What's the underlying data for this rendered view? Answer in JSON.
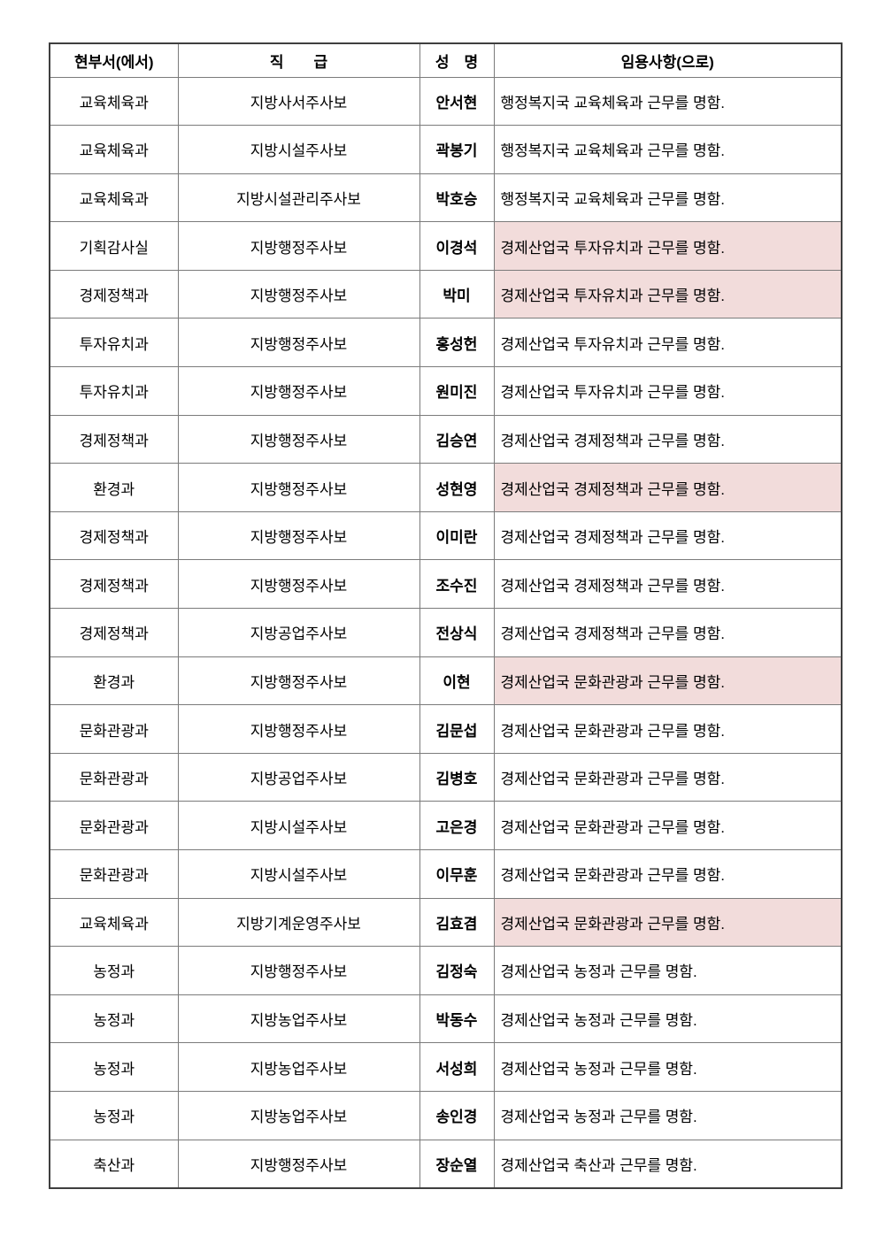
{
  "table": {
    "highlight_color": "#f2dcdb",
    "columns": [
      {
        "label": "현부서(에서)"
      },
      {
        "label": "직　　급"
      },
      {
        "label": "성　명"
      },
      {
        "label": "임용사항(으로)"
      }
    ],
    "rows": [
      {
        "dept": "교육체육과",
        "rank": "지방사서주사보",
        "name": "안서현",
        "assignment": "행정복지국 교육체육과 근무를 명함.",
        "highlighted": false
      },
      {
        "dept": "교육체육과",
        "rank": "지방시설주사보",
        "name": "곽봉기",
        "assignment": "행정복지국 교육체육과 근무를 명함.",
        "highlighted": false
      },
      {
        "dept": "교육체육과",
        "rank": "지방시설관리주사보",
        "name": "박호승",
        "assignment": "행정복지국 교육체육과 근무를 명함.",
        "highlighted": false
      },
      {
        "dept": "기획감사실",
        "rank": "지방행정주사보",
        "name": "이경석",
        "assignment": "경제산업국 투자유치과 근무를 명함.",
        "highlighted": true
      },
      {
        "dept": "경제정책과",
        "rank": "지방행정주사보",
        "name": "박미",
        "assignment": "경제산업국 투자유치과 근무를 명함.",
        "highlighted": true
      },
      {
        "dept": "투자유치과",
        "rank": "지방행정주사보",
        "name": "홍성헌",
        "assignment": "경제산업국 투자유치과 근무를 명함.",
        "highlighted": false
      },
      {
        "dept": "투자유치과",
        "rank": "지방행정주사보",
        "name": "원미진",
        "assignment": "경제산업국 투자유치과 근무를 명함.",
        "highlighted": false
      },
      {
        "dept": "경제정책과",
        "rank": "지방행정주사보",
        "name": "김승연",
        "assignment": "경제산업국 경제정책과 근무를 명함.",
        "highlighted": false
      },
      {
        "dept": "환경과",
        "rank": "지방행정주사보",
        "name": "성현영",
        "assignment": "경제산업국 경제정책과 근무를 명함.",
        "highlighted": true
      },
      {
        "dept": "경제정책과",
        "rank": "지방행정주사보",
        "name": "이미란",
        "assignment": "경제산업국 경제정책과 근무를 명함.",
        "highlighted": false
      },
      {
        "dept": "경제정책과",
        "rank": "지방행정주사보",
        "name": "조수진",
        "assignment": "경제산업국 경제정책과 근무를 명함.",
        "highlighted": false
      },
      {
        "dept": "경제정책과",
        "rank": "지방공업주사보",
        "name": "전상식",
        "assignment": "경제산업국 경제정책과 근무를 명함.",
        "highlighted": false
      },
      {
        "dept": "환경과",
        "rank": "지방행정주사보",
        "name": "이현",
        "assignment": "경제산업국 문화관광과 근무를 명함.",
        "highlighted": true
      },
      {
        "dept": "문화관광과",
        "rank": "지방행정주사보",
        "name": "김문섭",
        "assignment": "경제산업국 문화관광과 근무를 명함.",
        "highlighted": false
      },
      {
        "dept": "문화관광과",
        "rank": "지방공업주사보",
        "name": "김병호",
        "assignment": "경제산업국 문화관광과 근무를 명함.",
        "highlighted": false
      },
      {
        "dept": "문화관광과",
        "rank": "지방시설주사보",
        "name": "고은경",
        "assignment": "경제산업국 문화관광과 근무를 명함.",
        "highlighted": false
      },
      {
        "dept": "문화관광과",
        "rank": "지방시설주사보",
        "name": "이무훈",
        "assignment": "경제산업국 문화관광과 근무를 명함.",
        "highlighted": false
      },
      {
        "dept": "교육체육과",
        "rank": "지방기계운영주사보",
        "name": "김효겸",
        "assignment": "경제산업국 문화관광과 근무를 명함.",
        "highlighted": true
      },
      {
        "dept": "농정과",
        "rank": "지방행정주사보",
        "name": "김정숙",
        "assignment": "경제산업국 농정과 근무를 명함.",
        "highlighted": false
      },
      {
        "dept": "농정과",
        "rank": "지방농업주사보",
        "name": "박동수",
        "assignment": "경제산업국 농정과 근무를 명함.",
        "highlighted": false
      },
      {
        "dept": "농정과",
        "rank": "지방농업주사보",
        "name": "서성희",
        "assignment": "경제산업국 농정과 근무를 명함.",
        "highlighted": false
      },
      {
        "dept": "농정과",
        "rank": "지방농업주사보",
        "name": "송인경",
        "assignment": "경제산업국 농정과 근무를 명함.",
        "highlighted": false
      },
      {
        "dept": "축산과",
        "rank": "지방행정주사보",
        "name": "장순열",
        "assignment": "경제산업국 축산과 근무를 명함.",
        "highlighted": false
      }
    ]
  }
}
